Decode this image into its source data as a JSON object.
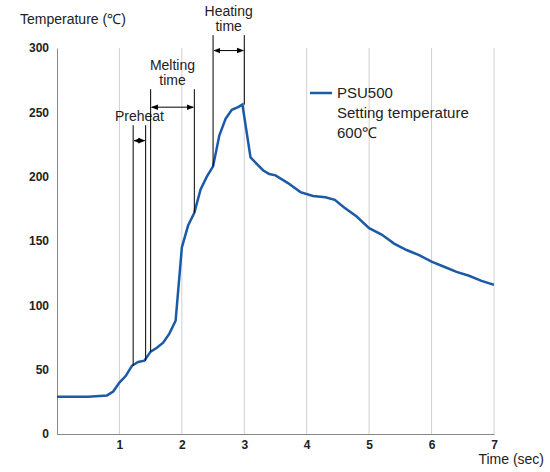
{
  "chart_data": {
    "type": "line",
    "y_label": "Temperature (℃)",
    "x_label": "Time (sec)",
    "x": [
      0,
      0.5,
      0.8,
      0.9,
      1.0,
      1.1,
      1.2,
      1.3,
      1.4,
      1.5,
      1.6,
      1.7,
      1.8,
      1.9,
      2.0,
      2.1,
      2.2,
      2.3,
      2.4,
      2.5,
      2.6,
      2.7,
      2.8,
      2.9,
      2.97,
      3.1,
      3.2,
      3.3,
      3.4,
      3.5,
      3.7,
      3.9,
      4.1,
      4.3,
      4.45,
      4.6,
      4.8,
      5.0,
      5.2,
      5.4,
      5.6,
      5.8,
      6.0,
      6.2,
      6.4,
      6.6,
      6.8,
      7.0
    ],
    "series": [
      {
        "name": "PSU500\nSetting temperature\n600℃",
        "color": "#1a5aa6",
        "values": [
          29,
          29,
          30,
          33,
          40,
          45,
          53,
          56,
          57,
          64,
          67,
          71,
          78,
          88,
          145,
          162,
          172,
          190,
          200,
          208,
          232,
          245,
          252,
          254,
          256,
          215,
          210,
          205,
          202,
          201,
          195,
          188,
          185,
          184,
          182,
          176,
          169,
          160,
          155,
          148,
          143,
          139,
          134,
          130,
          126,
          123,
          119,
          116
        ]
      }
    ],
    "xlim": [
      0,
      7
    ],
    "xticks": [
      1,
      2,
      3,
      4,
      5,
      6,
      7
    ],
    "ylim": [
      0,
      300
    ],
    "yticks": [
      0,
      50,
      100,
      150,
      200,
      250,
      300
    ],
    "grid": "x",
    "legend": "upper right",
    "annotations": [
      {
        "text": "Preheat",
        "x": [
          1.22,
          1.42
        ],
        "y_start": [
          53,
          57
        ],
        "y": 228,
        "y_top": 240
      },
      {
        "text": "Melting\ntime",
        "x": [
          1.5,
          2.2
        ],
        "y_start": [
          64,
          172
        ],
        "y": 254,
        "y_top": 268
      },
      {
        "text": "Heating\ntime",
        "x": [
          2.5,
          3.0
        ],
        "y_start": [
          208,
          256
        ],
        "y": 298,
        "y_top": 310
      }
    ]
  }
}
